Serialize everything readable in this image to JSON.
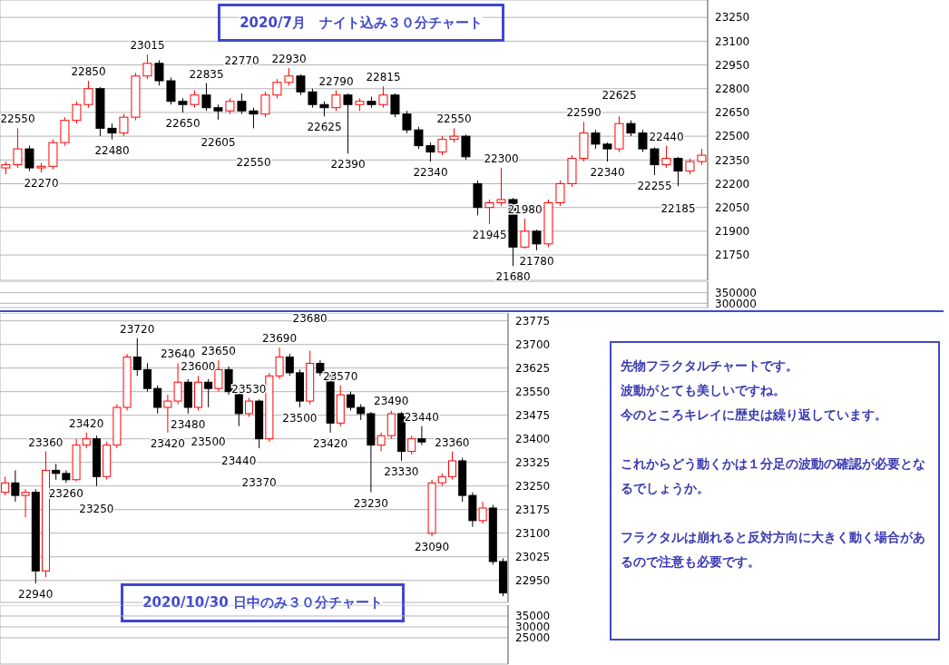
{
  "chart_data": [
    {
      "type": "candlestick",
      "title": "2020/7月　ナイト込み３０分チャート",
      "categories": [
        null,
        null,
        null,
        null,
        null,
        null,
        null,
        null,
        null,
        null,
        null,
        null,
        null,
        null,
        null,
        null,
        null,
        null,
        null,
        null,
        null,
        null,
        null,
        null,
        null,
        null,
        null,
        null,
        null,
        null,
        null,
        null,
        null,
        null,
        null,
        null,
        null,
        null,
        null,
        null,
        null,
        null,
        null,
        null,
        null,
        null,
        null,
        null,
        null,
        null,
        null,
        null,
        null,
        null,
        null,
        null,
        null,
        null,
        null,
        null
      ],
      "ohlc": [
        [
          22300,
          22340,
          22260,
          22320
        ],
        [
          22320,
          22550,
          22300,
          22420
        ],
        [
          22420,
          22440,
          22280,
          22300
        ],
        [
          22300,
          22330,
          22270,
          22310
        ],
        [
          22310,
          22480,
          22290,
          22460
        ],
        [
          22460,
          22620,
          22440,
          22600
        ],
        [
          22600,
          22720,
          22580,
          22700
        ],
        [
          22700,
          22850,
          22680,
          22800
        ],
        [
          22800,
          22810,
          22500,
          22550
        ],
        [
          22550,
          22580,
          22480,
          22520
        ],
        [
          22520,
          22640,
          22500,
          22620
        ],
        [
          22620,
          22900,
          22600,
          22880
        ],
        [
          22880,
          23015,
          22860,
          22960
        ],
        [
          22960,
          22980,
          22820,
          22850
        ],
        [
          22850,
          22870,
          22700,
          22720
        ],
        [
          22720,
          22740,
          22650,
          22700
        ],
        [
          22700,
          22790,
          22680,
          22760
        ],
        [
          22760,
          22835,
          22660,
          22680
        ],
        [
          22680,
          22700,
          22605,
          22660
        ],
        [
          22660,
          22740,
          22640,
          22720
        ],
        [
          22720,
          22770,
          22640,
          22660
        ],
        [
          22660,
          22680,
          22550,
          22640
        ],
        [
          22640,
          22780,
          22620,
          22760
        ],
        [
          22760,
          22860,
          22740,
          22840
        ],
        [
          22840,
          22930,
          22820,
          22880
        ],
        [
          22880,
          22890,
          22760,
          22780
        ],
        [
          22780,
          22800,
          22680,
          22700
        ],
        [
          22700,
          22720,
          22625,
          22680
        ],
        [
          22680,
          22790,
          22660,
          22760
        ],
        [
          22760,
          22770,
          22390,
          22700
        ],
        [
          22700,
          22740,
          22660,
          22720
        ],
        [
          22720,
          22750,
          22680,
          22700
        ],
        [
          22700,
          22815,
          22680,
          22760
        ],
        [
          22760,
          22770,
          22620,
          22640
        ],
        [
          22640,
          22660,
          22520,
          22540
        ],
        [
          22540,
          22560,
          22420,
          22440
        ],
        [
          22440,
          22460,
          22340,
          22400
        ],
        [
          22400,
          22500,
          22380,
          22480
        ],
        [
          22480,
          22550,
          22460,
          22500
        ],
        [
          22500,
          22510,
          22350,
          22370
        ],
        [
          22200,
          22220,
          22000,
          22050
        ],
        [
          22050,
          22100,
          21945,
          22080
        ],
        [
          22080,
          22300,
          22060,
          22100
        ],
        [
          22100,
          22110,
          21680,
          21800
        ],
        [
          21800,
          21980,
          21790,
          21900
        ],
        [
          21900,
          21910,
          21780,
          21820
        ],
        [
          21820,
          22100,
          21800,
          22080
        ],
        [
          22080,
          22220,
          22060,
          22200
        ],
        [
          22200,
          22380,
          22180,
          22360
        ],
        [
          22360,
          22590,
          22340,
          22520
        ],
        [
          22520,
          22540,
          22420,
          22450
        ],
        [
          22450,
          22460,
          22340,
          22420
        ],
        [
          22420,
          22625,
          22400,
          22580
        ],
        [
          22580,
          22600,
          22500,
          22520
        ],
        [
          22520,
          22540,
          22400,
          22420
        ],
        [
          22420,
          22430,
          22255,
          22320
        ],
        [
          22320,
          22440,
          22300,
          22360
        ],
        [
          22360,
          22370,
          22185,
          22280
        ],
        [
          22280,
          22360,
          22260,
          22340
        ],
        [
          22340,
          22420,
          22320,
          22380
        ]
      ],
      "ylim": [
        21590,
        23360
      ],
      "yticks": [
        21750,
        21900,
        22050,
        22200,
        22350,
        22500,
        22650,
        22800,
        22950,
        23100,
        23250
      ],
      "grid": true,
      "annotations": [
        {
          "text": "22550",
          "y": 22550
        },
        {
          "text": "22270",
          "y": 22270
        },
        {
          "text": "22850",
          "y": 22850
        },
        {
          "text": "22480",
          "y": 22480
        },
        {
          "text": "23015",
          "y": 23015
        },
        {
          "text": "22650",
          "y": 22650
        },
        {
          "text": "22835",
          "y": 22835
        },
        {
          "text": "22605",
          "y": 22605
        },
        {
          "text": "22770",
          "y": 22770
        },
        {
          "text": "22550",
          "y": 22550
        },
        {
          "text": "22930",
          "y": 22930
        },
        {
          "text": "22625",
          "y": 22625
        },
        {
          "text": "22790",
          "y": 22790
        },
        {
          "text": "22390",
          "y": 22390
        },
        {
          "text": "22815",
          "y": 22815
        },
        {
          "text": "22340",
          "y": 22340
        },
        {
          "text": "22550",
          "y": 22550
        },
        {
          "text": "21945",
          "y": 21945
        },
        {
          "text": "22300",
          "y": 22300
        },
        {
          "text": "21680",
          "y": 21680
        },
        {
          "text": "21980",
          "y": 21980
        },
        {
          "text": "21780",
          "y": 21780
        },
        {
          "text": "22590",
          "y": 22590
        },
        {
          "text": "22340",
          "y": 22340
        },
        {
          "text": "22625",
          "y": 22625
        },
        {
          "text": "22255",
          "y": 22255
        },
        {
          "text": "22440",
          "y": 22440
        },
        {
          "text": "22185",
          "y": 22185
        }
      ]
    },
    {
      "type": "bar",
      "categories": [
        null,
        null,
        null,
        null,
        null,
        null,
        null,
        null,
        null,
        null,
        null,
        null,
        null,
        null,
        null,
        null,
        null,
        null,
        null,
        null,
        null,
        null,
        null,
        null,
        null,
        null,
        null,
        null,
        null,
        null,
        null,
        null,
        null,
        null,
        null,
        null,
        null,
        null,
        null,
        null,
        null,
        null,
        null,
        null,
        null,
        null,
        null,
        null,
        null,
        null,
        null,
        null,
        null,
        null,
        null,
        null,
        null,
        null,
        null,
        null
      ],
      "values": [
        null,
        null,
        null,
        null,
        null,
        null,
        null,
        null,
        null,
        null,
        null,
        null,
        null,
        null,
        null,
        null,
        null,
        null,
        null,
        null,
        null,
        null,
        null,
        null,
        null,
        null,
        null,
        null,
        null,
        null,
        null,
        null,
        null,
        null,
        null,
        null,
        null,
        null,
        null,
        null,
        null,
        null,
        null,
        null,
        null,
        null,
        null,
        null,
        null,
        null,
        null,
        null,
        null,
        null,
        null,
        null,
        null,
        null,
        null,
        null
      ],
      "ylim": [
        280000,
        404000
      ],
      "yticks": [
        300000,
        350000
      ],
      "grid": "y",
      "tick_labels": "y"
    },
    {
      "type": "candlestick",
      "title": "2020/10/30 日中のみ３０分チャート",
      "categories": [
        null,
        null,
        null,
        null,
        null,
        null,
        null,
        null,
        null,
        null,
        null,
        null,
        null,
        null,
        null,
        null,
        null,
        null,
        null,
        null,
        null,
        null,
        null,
        null,
        null,
        null,
        null,
        null,
        null,
        null,
        null,
        null,
        null,
        null,
        null,
        null,
        null,
        null,
        null,
        null,
        null,
        null,
        null,
        null,
        null,
        null,
        null,
        null,
        null,
        null
      ],
      "ohlc": [
        [
          23230,
          23280,
          23220,
          23260
        ],
        [
          23260,
          23300,
          23200,
          23220
        ],
        [
          23220,
          23240,
          23150,
          23230
        ],
        [
          23230,
          23240,
          22940,
          22980
        ],
        [
          22980,
          23360,
          22960,
          23300
        ],
        [
          23300,
          23320,
          23270,
          23290
        ],
        [
          23290,
          23300,
          23260,
          23270
        ],
        [
          23270,
          23400,
          23265,
          23380
        ],
        [
          23380,
          23420,
          23370,
          23400
        ],
        [
          23400,
          23410,
          23250,
          23280
        ],
        [
          23280,
          23390,
          23270,
          23380
        ],
        [
          23380,
          23510,
          23370,
          23500
        ],
        [
          23500,
          23670,
          23490,
          23660
        ],
        [
          23660,
          23720,
          23600,
          23620
        ],
        [
          23620,
          23640,
          23550,
          23560
        ],
        [
          23560,
          23570,
          23480,
          23500
        ],
        [
          23500,
          23540,
          23420,
          23520
        ],
        [
          23520,
          23640,
          23510,
          23580
        ],
        [
          23580,
          23590,
          23480,
          23500
        ],
        [
          23500,
          23600,
          23490,
          23580
        ],
        [
          23580,
          23590,
          23500,
          23560
        ],
        [
          23560,
          23650,
          23550,
          23620
        ],
        [
          23620,
          23630,
          23540,
          23550
        ],
        [
          23550,
          23560,
          23440,
          23480
        ],
        [
          23480,
          23530,
          23470,
          23520
        ],
        [
          23520,
          23525,
          23370,
          23400
        ],
        [
          23400,
          23610,
          23390,
          23600
        ],
        [
          23600,
          23690,
          23590,
          23660
        ],
        [
          23660,
          23670,
          23600,
          23610
        ],
        [
          23610,
          23620,
          23500,
          23520
        ],
        [
          23520,
          23680,
          23510,
          23640
        ],
        [
          23640,
          23650,
          23600,
          23610
        ],
        [
          23610,
          23615,
          23420,
          23450
        ],
        [
          23450,
          23570,
          23440,
          23540
        ],
        [
          23540,
          23550,
          23490,
          23500
        ],
        [
          23500,
          23510,
          23460,
          23480
        ],
        [
          23480,
          23485,
          23230,
          23380
        ],
        [
          23380,
          23420,
          23360,
          23410
        ],
        [
          23410,
          23490,
          23400,
          23480
        ],
        [
          23480,
          23485,
          23330,
          23360
        ],
        [
          23360,
          23410,
          23350,
          23400
        ],
        [
          23400,
          23440,
          23380,
          23390
        ],
        [
          23100,
          23270,
          23090,
          23260
        ],
        [
          23260,
          23290,
          23250,
          23280
        ],
        [
          23280,
          23360,
          23270,
          23330
        ],
        [
          23330,
          23340,
          23200,
          23220
        ],
        [
          23220,
          23230,
          23120,
          23140
        ],
        [
          23140,
          23200,
          23130,
          23180
        ],
        [
          23180,
          23190,
          23000,
          23010
        ],
        [
          23010,
          23020,
          22900,
          22910
        ]
      ],
      "ylim": [
        22880,
        23800
      ],
      "yticks": [
        22950,
        23025,
        23100,
        23175,
        23250,
        23325,
        23400,
        23475,
        23550,
        23625,
        23700,
        23775
      ],
      "grid": true,
      "annotations": [
        {
          "text": "22940",
          "y": 22940
        },
        {
          "text": "23360",
          "y": 23360
        },
        {
          "text": "23260",
          "y": 23260
        },
        {
          "text": "23420",
          "y": 23420
        },
        {
          "text": "23250",
          "y": 23250
        },
        {
          "text": "23720",
          "y": 23720
        },
        {
          "text": "23420",
          "y": 23420
        },
        {
          "text": "23640",
          "y": 23640
        },
        {
          "text": "23480",
          "y": 23480
        },
        {
          "text": "23600",
          "y": 23600
        },
        {
          "text": "23500",
          "y": 23500
        },
        {
          "text": "23650",
          "y": 23650
        },
        {
          "text": "23440",
          "y": 23440
        },
        {
          "text": "23530",
          "y": 23530
        },
        {
          "text": "23370",
          "y": 23370
        },
        {
          "text": "23690",
          "y": 23690
        },
        {
          "text": "23500",
          "y": 23500
        },
        {
          "text": "23680",
          "y": 23680
        },
        {
          "text": "23420",
          "y": 23420
        },
        {
          "text": "23570",
          "y": 23570
        },
        {
          "text": "23230",
          "y": 23230
        },
        {
          "text": "23490",
          "y": 23490
        },
        {
          "text": "23330",
          "y": 23330
        },
        {
          "text": "23440",
          "y": 23440
        },
        {
          "text": "23090",
          "y": 23090
        },
        {
          "text": "23360",
          "y": 23360
        }
      ]
    },
    {
      "type": "bar",
      "categories": [
        null,
        null,
        null,
        null,
        null,
        null,
        null,
        null,
        null,
        null,
        null,
        null,
        null,
        null,
        null,
        null,
        null,
        null,
        null,
        null,
        null,
        null,
        null,
        null,
        null,
        null,
        null,
        null,
        null,
        null,
        null,
        null,
        null,
        null,
        null,
        null,
        null,
        null,
        null,
        null,
        null,
        null,
        null,
        null,
        null,
        null,
        null,
        null,
        null,
        null
      ],
      "values": [
        null,
        null,
        null,
        null,
        null,
        null,
        null,
        null,
        null,
        null,
        null,
        null,
        null,
        null,
        null,
        null,
        null,
        null,
        null,
        null,
        null,
        null,
        null,
        null,
        null,
        null,
        null,
        null,
        null,
        null,
        null,
        null,
        null,
        null,
        null,
        null,
        null,
        null,
        null,
        null,
        null,
        null,
        null,
        null,
        null,
        null,
        null,
        null,
        null,
        null
      ],
      "ylim": [
        12900,
        40000
      ],
      "yticks": [
        25000,
        30000,
        35000
      ],
      "grid": true,
      "tick_labels": "y"
    },
    {
      "type": "other",
      "annotations": [
        "先物フラクタルチャートです。",
        "波動がとても美しいですね。",
        "今のところキレイに歴史は繰り返しています。",
        "これからどう動くかは１分足の波動の確認が必要となるでしょうか。",
        "フラクタルは崩れると反対方向に大きく動く場合があるので注意も必要です。"
      ]
    }
  ]
}
